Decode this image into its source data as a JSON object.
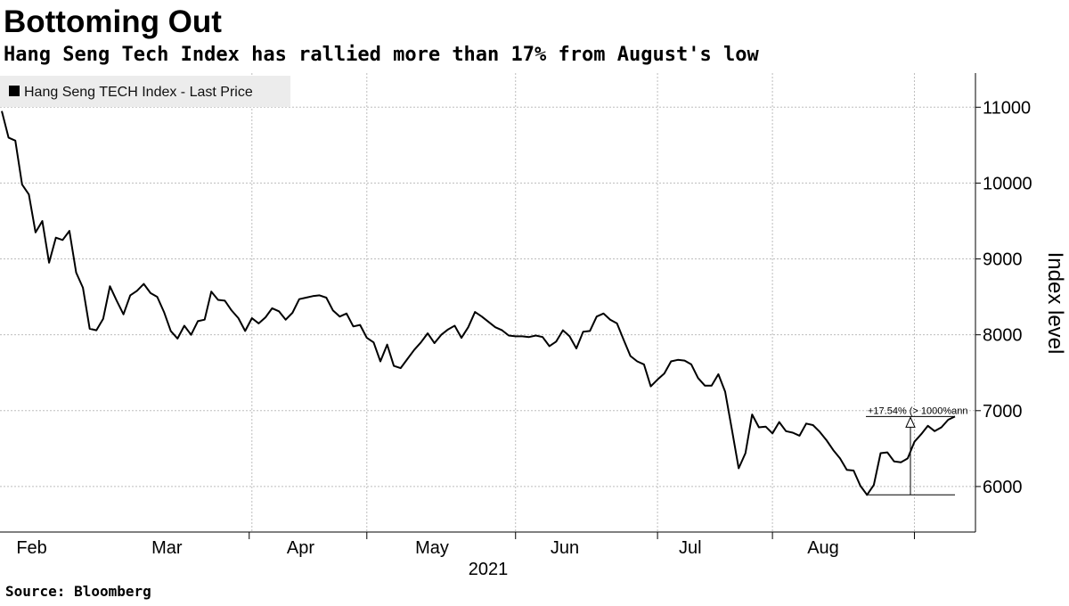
{
  "chart_data": {
    "type": "line",
    "title": "Bottoming Out",
    "subtitle": "Hang Seng Tech Index has rallied more than 17% from August's low",
    "source": "Source: Bloomberg",
    "legend": {
      "label": "Hang Seng TECH Index - Last Price",
      "placement": "top-left",
      "color": "#000000"
    },
    "ylabel": "Index level",
    "ylim": [
      5400,
      11450
    ],
    "yticks": [
      6000,
      7000,
      8000,
      9000,
      10000,
      11000
    ],
    "x_month_labels": [
      "Feb",
      "Mar",
      "Apr",
      "May",
      "Jun",
      "Jul",
      "Aug"
    ],
    "x_year_label": "2021",
    "x_axis": "trading-day index (0 = Jan 26, 2021)",
    "grid": true,
    "annotation": {
      "text": "+17.54% (> 1000%ann",
      "low_value": 5890,
      "high_value": 6923,
      "change": "+17.54%"
    },
    "series": [
      {
        "color": "#000000",
        "values": [
          10950,
          10600,
          10560,
          9980,
          9850,
          9350,
          9500,
          8950,
          9280,
          9250,
          9370,
          8820,
          8620,
          8080,
          8060,
          8210,
          8640,
          8450,
          8270,
          8520,
          8580,
          8670,
          8550,
          8500,
          8300,
          8050,
          7950,
          8120,
          8000,
          8180,
          8200,
          8570,
          8460,
          8450,
          8320,
          8220,
          8050,
          8220,
          8150,
          8230,
          8350,
          8310,
          8200,
          8290,
          8470,
          8490,
          8510,
          8520,
          8490,
          8320,
          8240,
          8280,
          8110,
          8130,
          7960,
          7900,
          7650,
          7870,
          7590,
          7560,
          7680,
          7800,
          7900,
          8020,
          7890,
          8000,
          8070,
          8120,
          7960,
          8100,
          8300,
          8240,
          8170,
          8100,
          8060,
          7990,
          7980,
          7980,
          7970,
          7990,
          7970,
          7850,
          7910,
          8060,
          7980,
          7820,
          8040,
          8050,
          8240,
          8280,
          8200,
          8150,
          7930,
          7720,
          7650,
          7610,
          7320,
          7410,
          7490,
          7650,
          7670,
          7660,
          7610,
          7430,
          7330,
          7330,
          7480,
          7250,
          6750,
          6240,
          6440,
          6950,
          6780,
          6790,
          6700,
          6850,
          6730,
          6710,
          6670,
          6830,
          6810,
          6720,
          6610,
          6480,
          6370,
          6220,
          6210,
          6010,
          5890,
          6020,
          6440,
          6450,
          6330,
          6320,
          6370,
          6590,
          6690,
          6800,
          6730,
          6780,
          6880,
          6923
        ]
      }
    ]
  }
}
